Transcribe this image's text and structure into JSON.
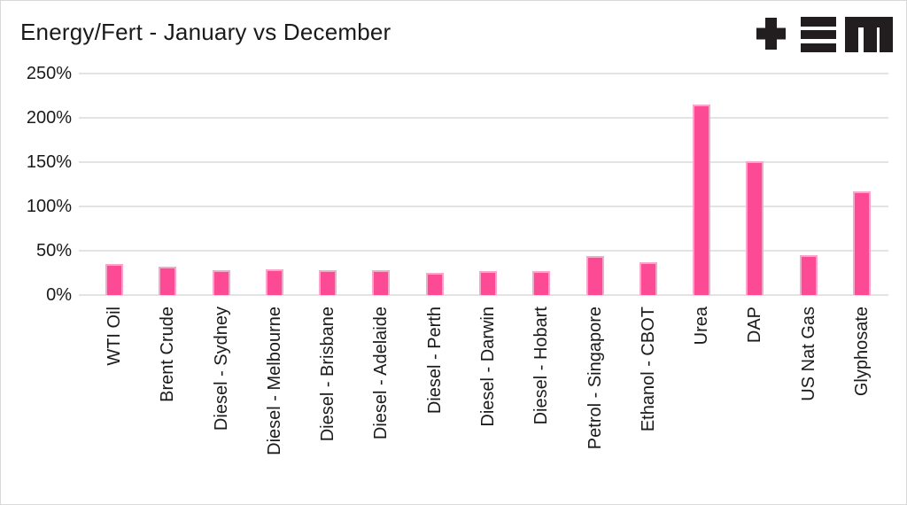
{
  "header": {
    "title": "Energy/Fert - January vs December"
  },
  "logo": {
    "name": "tem-logo",
    "color": "#221e1f"
  },
  "colors": {
    "bar_fill": "#fc4a94",
    "bar_border": "#f9a6cb",
    "gridline": "#e3e3e3",
    "text": "#1a1a1a",
    "background": "#ffffff"
  },
  "chart_data": {
    "type": "bar",
    "title": "Energy/Fert - January vs December",
    "xlabel": "",
    "ylabel": "",
    "unit": "%",
    "ylim": [
      0,
      250
    ],
    "grid": "horizontal",
    "legend": "none",
    "y_ticks": [
      "250%",
      "200%",
      "150%",
      "100%",
      "50%",
      "0%"
    ],
    "categories": [
      "WTI Oil",
      "Brent Crude",
      "Diesel - Sydney",
      "Diesel - Melbourne",
      "Diesel - Brisbane",
      "Diesel - Adelaide",
      "Diesel - Perth",
      "Diesel - Darwin",
      "Diesel - Hobart",
      "Petrol - Singapore",
      "Ethanol - CBOT",
      "Urea",
      "DAP",
      "US Nat Gas",
      "Glyphosate"
    ],
    "values": [
      35,
      32,
      28,
      29,
      28,
      28,
      25,
      27,
      27,
      44,
      37,
      215,
      151,
      45,
      117
    ]
  }
}
